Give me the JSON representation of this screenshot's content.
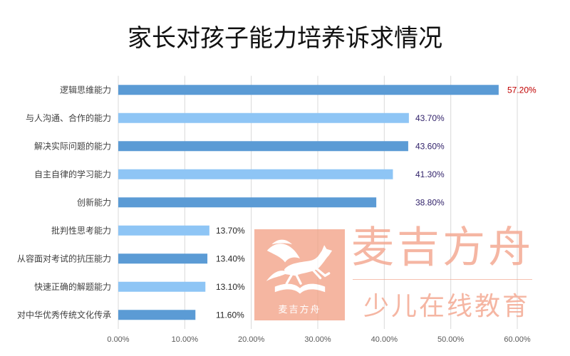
{
  "chart_data": {
    "type": "bar",
    "orientation": "horizontal",
    "title": "家长对孩子能力培养诉求情况",
    "categories": [
      "逻辑思维能力",
      "与人沟通、合作的能力",
      "解决实际问题的能力",
      "自主自律的学习能力",
      "创新能力",
      "批判性思考能力",
      "从容面对考试的抗压能力",
      "快速正确的解题能力",
      "对中华优秀传统文化传承"
    ],
    "values": [
      57.2,
      43.7,
      43.6,
      41.3,
      38.8,
      13.7,
      13.4,
      13.1,
      11.6
    ],
    "value_unit": "%",
    "xlim": [
      0,
      60
    ],
    "xticks": [
      0,
      10,
      20,
      30,
      40,
      50,
      60
    ],
    "grid": true,
    "bar_colors": [
      "#5b9bd5",
      "#8ec5f5",
      "#5b9bd5",
      "#8ec5f5",
      "#5b9bd5",
      "#8ec5f5",
      "#5b9bd5",
      "#8ec5f5",
      "#5b9bd5"
    ],
    "data_label_colors": [
      "#c00000",
      "#32236b",
      "#32236b",
      "#32236b",
      "#32236b",
      "#262626",
      "#262626",
      "#262626",
      "#262626"
    ]
  },
  "watermark": {
    "brand_name": "麦吉方舟",
    "tagline": "少儿在线教育",
    "logo_caption": "麦吉方舟",
    "logo_icon": "pegasus-on-book-icon",
    "text_color": "#f4a78f",
    "logo_color": "#f3a084"
  }
}
